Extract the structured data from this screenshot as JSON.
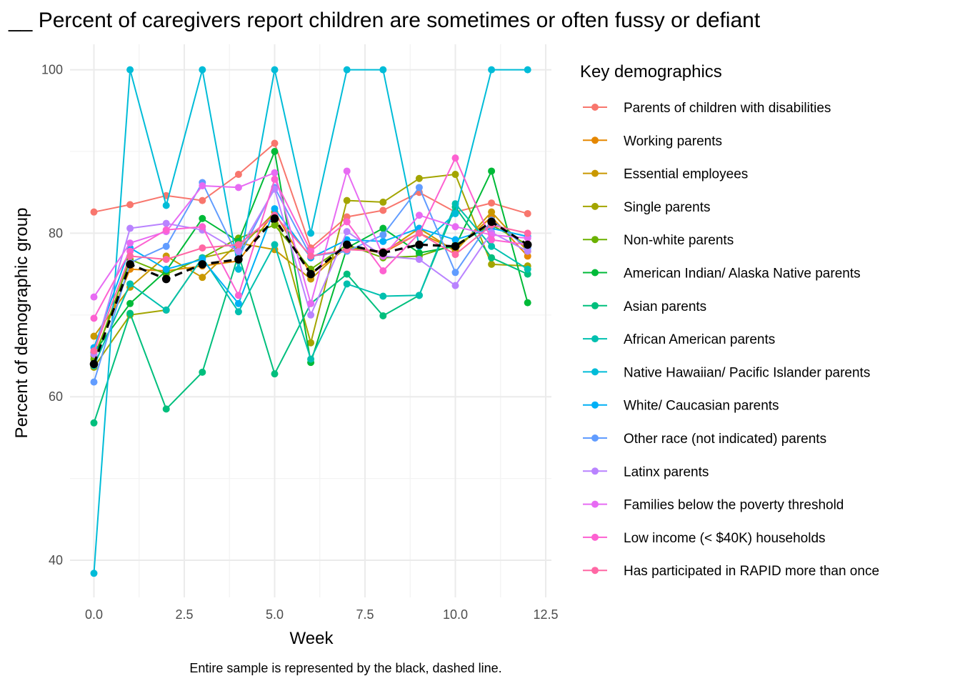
{
  "chart_data": {
    "type": "line",
    "title": "__ Percent of caregivers report children are sometimes or often fussy or defiant",
    "xlabel": "Week",
    "ylabel": "Percent of demographic group",
    "caption": "Entire sample is represented by the black, dashed line.",
    "xlim": [
      -0.6,
      12.6
    ],
    "ylim": [
      35.5,
      103.5
    ],
    "x_ticks": [
      0,
      2.5,
      5,
      7.5,
      10,
      12.5
    ],
    "x_tick_labels": [
      "0.0",
      "2.5",
      "5.0",
      "7.5",
      "10.0",
      "12.5"
    ],
    "y_ticks": [
      40,
      60,
      80,
      100
    ],
    "y_tick_labels": [
      "40",
      "60",
      "80",
      "100"
    ],
    "grid": true,
    "legend": {
      "title": "Key demographics",
      "position": "right"
    },
    "x": [
      0,
      1,
      2,
      3,
      4,
      5,
      6,
      7,
      8,
      9,
      10,
      11,
      12
    ],
    "series": [
      {
        "name": "Parents of children with disabilities",
        "color": "#F8766D",
        "values": [
          82.6,
          83.5,
          84.6,
          84.0,
          87.2,
          91.0,
          78.2,
          82.0,
          82.8,
          85.0,
          82.6,
          83.7,
          82.4
        ]
      },
      {
        "name": "Working parents",
        "color": "#E58700",
        "values": [
          65.0,
          75.6,
          75.4,
          76.0,
          76.6,
          82.6,
          75.0,
          78.2,
          77.6,
          80.0,
          78.0,
          82.0,
          77.2
        ]
      },
      {
        "name": "Essential employees",
        "color": "#C99800",
        "values": [
          67.4,
          73.4,
          77.2,
          74.6,
          78.8,
          78.0,
          74.4,
          78.4,
          77.6,
          80.6,
          77.8,
          82.6,
          77.8
        ]
      },
      {
        "name": "Single parents",
        "color": "#A3A500",
        "values": [
          63.6,
          70.0,
          70.6,
          77.0,
          78.0,
          82.6,
          66.6,
          84.0,
          83.8,
          86.7,
          87.2,
          76.2,
          76.0
        ]
      },
      {
        "name": "Non-white parents",
        "color": "#6BB100",
        "values": [
          64.6,
          76.8,
          75.0,
          77.0,
          79.4,
          81.0,
          75.6,
          78.6,
          77.0,
          77.2,
          78.6,
          81.0,
          78.6
        ]
      },
      {
        "name": "American Indian/ Alaska Native parents",
        "color": "#00BA38",
        "values": [
          65.4,
          71.4,
          75.4,
          81.8,
          79.0,
          90.0,
          64.2,
          78.2,
          80.6,
          77.6,
          78.4,
          87.6,
          71.5
        ]
      },
      {
        "name": "Asian parents",
        "color": "#00BF7D",
        "values": [
          56.8,
          70.2,
          58.5,
          63.0,
          77.4,
          62.8,
          71.4,
          75.0,
          69.9,
          72.4,
          83.2,
          77.0,
          75.0
        ]
      },
      {
        "name": "African American parents",
        "color": "#00C0AF",
        "values": [
          63.8,
          73.8,
          70.6,
          77.0,
          70.4,
          78.6,
          64.6,
          73.8,
          72.3,
          72.4,
          83.6,
          78.4,
          75.6
        ]
      },
      {
        "name": "Native Hawaiian/ Pacific Islander parents",
        "color": "#00BCD8",
        "values": [
          38.4,
          100.0,
          83.4,
          100.0,
          75.6,
          100.0,
          80.0,
          100.0,
          100.0,
          78.4,
          82.4,
          100.0,
          100.0
        ]
      },
      {
        "name": "White/ Caucasian parents",
        "color": "#00B0F6",
        "values": [
          66.0,
          78.2,
          75.6,
          76.8,
          71.4,
          83.0,
          77.0,
          79.2,
          79.0,
          80.6,
          79.2,
          80.6,
          79.6
        ]
      },
      {
        "name": "Other race (not indicated) parents",
        "color": "#619CFF",
        "values": [
          61.8,
          76.4,
          78.4,
          86.2,
          77.0,
          85.6,
          77.2,
          77.8,
          79.8,
          85.6,
          75.2,
          81.6,
          78.2
        ]
      },
      {
        "name": "Latinx parents",
        "color": "#B983FF",
        "values": [
          65.2,
          80.6,
          81.2,
          80.4,
          77.8,
          85.4,
          70.0,
          80.2,
          77.2,
          76.8,
          73.6,
          80.1,
          77.8
        ]
      },
      {
        "name": "Families below the poverty threshold",
        "color": "#E76BF3",
        "values": [
          72.2,
          78.8,
          80.2,
          85.8,
          85.6,
          87.4,
          71.4,
          87.6,
          77.2,
          82.2,
          80.8,
          79.8,
          79.4
        ]
      },
      {
        "name": "Low income (< $40K) households",
        "color": "#FD61D1",
        "values": [
          69.6,
          77.8,
          80.4,
          80.8,
          72.4,
          86.6,
          77.8,
          81.4,
          75.4,
          80.0,
          89.2,
          79.2,
          78.6
        ]
      },
      {
        "name": "Has participated in RAPID more than once",
        "color": "#FF67A4",
        "values": [
          65.6,
          77.2,
          76.8,
          78.2,
          78.6,
          82.2,
          77.2,
          78.0,
          77.8,
          80.0,
          77.4,
          81.0,
          80.0
        ]
      }
    ],
    "overall": {
      "color": "#000000",
      "style": "dashed",
      "values": [
        64.0,
        76.2,
        74.4,
        76.2,
        76.8,
        81.8,
        75.0,
        78.6,
        77.6,
        78.6,
        78.4,
        81.4,
        78.6
      ]
    }
  }
}
